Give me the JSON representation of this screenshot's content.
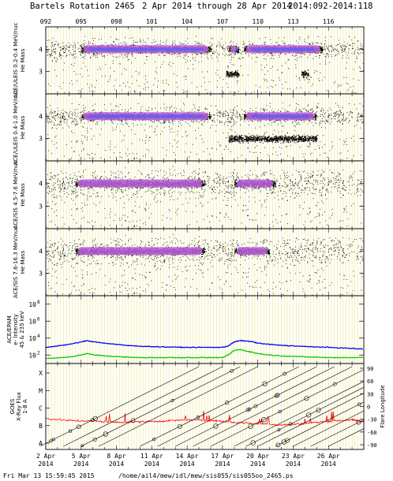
{
  "header": {
    "title": "Bartels Rotation 2465",
    "date_range": "2 Apr 2014 through 28 Apr 2014",
    "doy_range": "2014:092-2014:118"
  },
  "footer": {
    "timestamp": "Fri Mar 13 15:59:45 2015",
    "path": "/home/ail4/mew/idl/mew/sis055/sis055oo_2465.ps"
  },
  "top_doy_labels": [
    "092",
    "095",
    "098",
    "101",
    "104",
    "107",
    "110",
    "113",
    "116"
  ],
  "bottom_dates": [
    {
      "day": "2 Apr",
      "year": "2014"
    },
    {
      "day": "5 Apr",
      "year": "2014"
    },
    {
      "day": "8 Apr",
      "year": "2014"
    },
    {
      "day": "11 Apr",
      "year": "2014"
    },
    {
      "day": "14 Apr",
      "year": "2014"
    },
    {
      "day": "17 Apr",
      "year": "2014"
    },
    {
      "day": "20 Apr",
      "year": "2014"
    },
    {
      "day": "23 Apr",
      "year": "2014"
    },
    {
      "day": "26 Apr",
      "year": "2014"
    }
  ],
  "colors": {
    "grid_yellow": "#e8e070",
    "density_purple": "#c060e0",
    "density_blue": "#6060f0",
    "epam_blue": "#0000ff",
    "epam_green": "#00cc00",
    "xray_red": "#ff0000"
  },
  "chart_data": [
    {
      "type": "scatter",
      "panel": "uleis-1",
      "ylabel": "ACE/ULEIS 0.2-0.4 MeV/nuc",
      "ylabel_sub": "He Mass",
      "xlim": [
        92,
        119
      ],
      "ylim": [
        2,
        5
      ],
      "yticks": [
        "4",
        "3"
      ],
      "bands": [
        {
          "y": 4.0,
          "x0": 95.0,
          "x1": 106.0
        },
        {
          "y": 4.0,
          "x0": 107.5,
          "x1": 108.4
        },
        {
          "y": 4.0,
          "x0": 108.8,
          "x1": 115.5
        },
        {
          "y": 2.9,
          "x0": 107.3,
          "x1": 108.4
        },
        {
          "y": 2.9,
          "x0": 113.7,
          "x1": 114.3
        }
      ]
    },
    {
      "type": "scatter",
      "panel": "uleis-2",
      "ylabel": "ACE/ULEIS 0.4-1.0 MeV/nuc",
      "ylabel_sub": "He Mass",
      "xlim": [
        92,
        119
      ],
      "ylim": [
        2,
        5
      ],
      "yticks": [
        "4",
        "3"
      ],
      "bands": [
        {
          "y": 4.0,
          "x0": 95.0,
          "x1": 106.0
        },
        {
          "y": 4.0,
          "x0": 108.8,
          "x1": 115.0
        },
        {
          "y": 3.0,
          "x0": 107.5,
          "x1": 115.0
        }
      ]
    },
    {
      "type": "scatter",
      "panel": "sis-1",
      "ylabel": "ACE/SIS 4.5-7.6 MeV/nuc",
      "ylabel_sub": "He Mass",
      "xlim": [
        92,
        119
      ],
      "ylim": [
        2,
        5
      ],
      "yticks": [
        "4",
        "3"
      ],
      "bands": [
        {
          "y": 4.0,
          "x0": 94.5,
          "x1": 105.5
        },
        {
          "y": 4.0,
          "x0": 108.0,
          "x1": 111.5
        }
      ]
    },
    {
      "type": "scatter",
      "panel": "sis-2",
      "ylabel": "ACE/SIS 7.6-16.3 MeV/nuc",
      "ylabel_sub": "He Mass",
      "xlim": [
        92,
        119
      ],
      "ylim": [
        2,
        5
      ],
      "yticks": [
        "4",
        "3"
      ],
      "bands": [
        {
          "y": 4.0,
          "x0": 94.5,
          "x1": 105.5
        },
        {
          "y": 4.0,
          "x0": 108.0,
          "x1": 111.0
        }
      ]
    },
    {
      "type": "line",
      "panel": "epam",
      "ylabel": "ACE/EPAM e- Intensity 45 & 235 keV",
      "yscale": "log",
      "ylim": [
        10,
        1000000000
      ],
      "yticks": [
        "10^8",
        "10^6",
        "10^4",
        "10^2"
      ],
      "series": [
        {
          "color": "#0000ff",
          "x": [
            92,
            93,
            94,
            95,
            95.5,
            96,
            97,
            98,
            99,
            100,
            101,
            102,
            103,
            104,
            105,
            106,
            107,
            107.5,
            108,
            108.5,
            109,
            109.5,
            110,
            111,
            112,
            113,
            114,
            115,
            116,
            117,
            118,
            119
          ],
          "y": [
            800,
            1200,
            1800,
            3500,
            5000,
            3800,
            2500,
            1800,
            1300,
            1100,
            1000,
            900,
            850,
            800,
            800,
            800,
            800,
            1200,
            3500,
            5000,
            4500,
            3800,
            2500,
            1800,
            1400,
            1200,
            1000,
            900,
            800,
            700,
            600,
            500
          ]
        },
        {
          "color": "#00cc00",
          "x": [
            92,
            93,
            94,
            95,
            95.5,
            96,
            97,
            98,
            99,
            100,
            101,
            102,
            103,
            104,
            105,
            106,
            107,
            107.5,
            108,
            108.5,
            109,
            109.5,
            110,
            111,
            112,
            113,
            114,
            115,
            116,
            117,
            118,
            119
          ],
          "y": [
            40,
            45,
            60,
            100,
            150,
            110,
            80,
            65,
            55,
            50,
            50,
            50,
            50,
            50,
            50,
            50,
            50,
            100,
            350,
            450,
            300,
            220,
            150,
            100,
            80,
            70,
            60,
            55,
            50,
            50,
            50,
            50
          ]
        }
      ]
    },
    {
      "type": "line",
      "panel": "goes",
      "ylabel": "GOES X-Ray Flux 1-8 A",
      "ylabel_right": "Flare Longitude",
      "xlim": [
        92,
        119
      ],
      "yticks_left": [
        "X",
        "M",
        "C",
        "B",
        "A"
      ],
      "yticks_right": [
        "90",
        "60",
        "30",
        "0",
        "-30",
        "-60",
        "-90"
      ],
      "x": [
        92,
        94,
        96,
        98,
        100,
        102,
        104,
        106,
        108,
        110,
        112,
        114,
        116,
        118,
        119
      ],
      "y": [
        0.48,
        0.45,
        0.44,
        0.42,
        0.43,
        0.44,
        0.46,
        0.45,
        0.42,
        0.4,
        0.38,
        0.4,
        0.44,
        0.46,
        0.43
      ]
    }
  ]
}
